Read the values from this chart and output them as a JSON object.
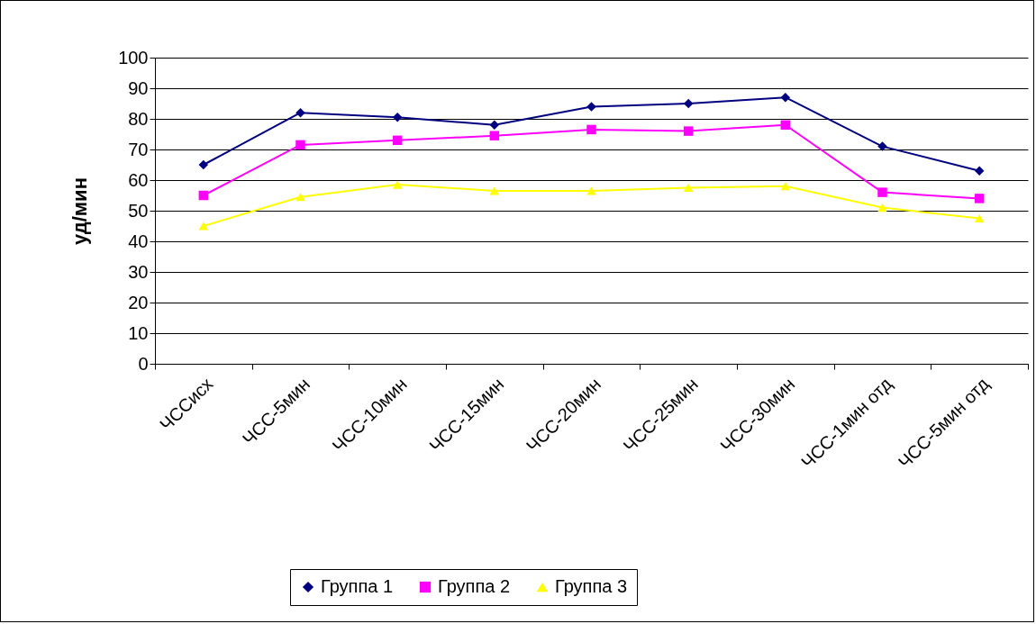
{
  "chart_data": {
    "type": "line",
    "ylabel": "уд/мин",
    "categories": [
      "ЧССисх",
      "ЧСС-5мин",
      "ЧСС-10мин",
      "ЧСС-15мин",
      "ЧСС-20мин",
      "ЧСС-25мин",
      "ЧСС-30мин",
      "ЧСС-1мин отд",
      "ЧСС-5мин отд"
    ],
    "series": [
      {
        "name": "Группа 1",
        "color": "#000080",
        "marker": "diamond",
        "values": [
          65,
          82,
          80.5,
          78,
          84,
          85,
          87,
          71,
          63
        ]
      },
      {
        "name": "Группа 2",
        "color": "#ff00ff",
        "marker": "square",
        "values": [
          55,
          71.5,
          73,
          74.5,
          76.5,
          76,
          78,
          56,
          54
        ]
      },
      {
        "name": "Группа 3",
        "color": "#ffff00",
        "marker": "triangle",
        "values": [
          45,
          54.5,
          58.5,
          56.5,
          56.5,
          57.5,
          58,
          51,
          47.5
        ]
      }
    ],
    "ylim": [
      0,
      100
    ],
    "yticks": [
      0,
      10,
      20,
      30,
      40,
      50,
      60,
      70,
      80,
      90,
      100
    ],
    "grid": "y",
    "legend": "bottom"
  }
}
